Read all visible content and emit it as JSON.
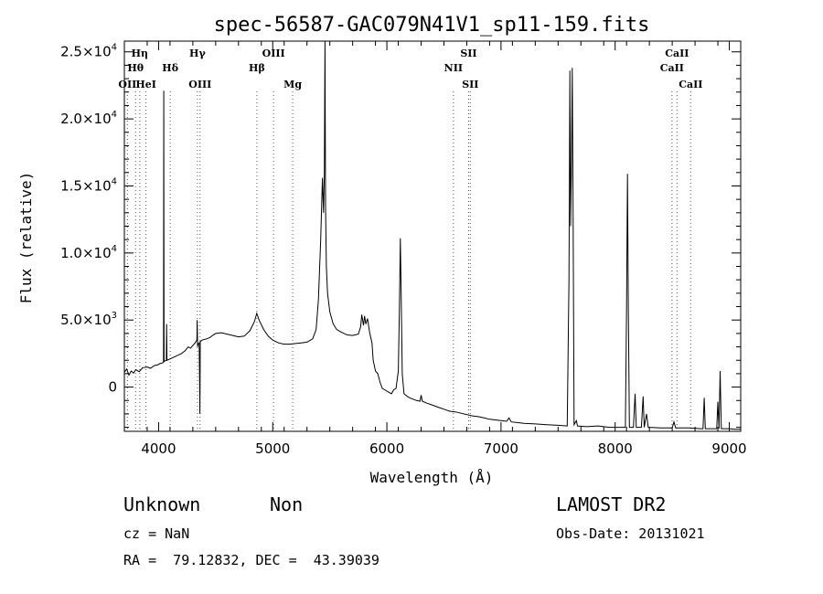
{
  "chart_data": {
    "type": "line",
    "title": "spec-56587-GAC079N41V1_sp11-159.fits",
    "xlabel": "Wavelength (Å)",
    "ylabel": "Flux (relative)",
    "xlim": [
      3700,
      9100
    ],
    "ylim": [
      -3300,
      25800
    ],
    "xticks": [
      4000,
      5000,
      6000,
      7000,
      8000,
      9000
    ],
    "xtick_labels": [
      "4000",
      "5000",
      "6000",
      "7000",
      "8000",
      "9000"
    ],
    "yticks": [
      {
        "value": 0,
        "mant": "0",
        "exp": ""
      },
      {
        "value": 5000,
        "mant": "5.0×10",
        "exp": "3"
      },
      {
        "value": 10000,
        "mant": "1.0×10",
        "exp": "4"
      },
      {
        "value": 15000,
        "mant": "1.5×10",
        "exp": "4"
      },
      {
        "value": 20000,
        "mant": "2.0×10",
        "exp": "4"
      },
      {
        "value": 25000,
        "mant": "2.5×10",
        "exp": "4"
      }
    ],
    "line_markers": [
      {
        "label": "OII",
        "wave": 3727,
        "row": 3
      },
      {
        "label": "Hη",
        "wave": 3835,
        "row": 1
      },
      {
        "label": "Hθ",
        "wave": 3798,
        "row": 2
      },
      {
        "label": "HeI",
        "wave": 3889,
        "row": 3
      },
      {
        "label": "Hδ",
        "wave": 4102,
        "row": 2
      },
      {
        "label": "Hγ",
        "wave": 4340,
        "row": 1
      },
      {
        "label": "OIII",
        "wave": 4363,
        "row": 3
      },
      {
        "label": "Hβ",
        "wave": 4861,
        "row": 2
      },
      {
        "label": "OIII",
        "wave": 5007,
        "row": 1
      },
      {
        "label": "Mg",
        "wave": 5175,
        "row": 3
      },
      {
        "label": "NII",
        "wave": 6583,
        "row": 2
      },
      {
        "label": "SII",
        "wave": 6716,
        "row": 1
      },
      {
        "label": "SII",
        "wave": 6731,
        "row": 3
      },
      {
        "label": "CaII",
        "wave": 8498,
        "row": 2
      },
      {
        "label": "CaII",
        "wave": 8542,
        "row": 1
      },
      {
        "label": "CaII",
        "wave": 8662,
        "row": 3
      }
    ],
    "series": [
      {
        "points": [
          [
            3700,
            1100
          ],
          [
            3720,
            1350
          ],
          [
            3740,
            900
          ],
          [
            3760,
            1200
          ],
          [
            3780,
            1050
          ],
          [
            3800,
            1300
          ],
          [
            3830,
            1150
          ],
          [
            3860,
            1450
          ],
          [
            3900,
            1500
          ],
          [
            3930,
            1400
          ],
          [
            3960,
            1600
          ],
          [
            3990,
            1650
          ],
          [
            4010,
            1750
          ],
          [
            4035,
            1800
          ],
          [
            4043,
            1900
          ],
          [
            4045,
            22100
          ],
          [
            4048,
            1900
          ],
          [
            4055,
            1950
          ],
          [
            4068,
            2000
          ],
          [
            4070,
            4700
          ],
          [
            4073,
            2000
          ],
          [
            4100,
            2100
          ],
          [
            4150,
            2300
          ],
          [
            4200,
            2500
          ],
          [
            4230,
            2700
          ],
          [
            4260,
            3000
          ],
          [
            4280,
            2900
          ],
          [
            4300,
            3100
          ],
          [
            4320,
            3300
          ],
          [
            4335,
            3500
          ],
          [
            4338,
            5000
          ],
          [
            4342,
            3000
          ],
          [
            4345,
            3200
          ],
          [
            4355,
            3300
          ],
          [
            4359,
            300
          ],
          [
            4362,
            -2000
          ],
          [
            4365,
            3400
          ],
          [
            4380,
            3500
          ],
          [
            4420,
            3600
          ],
          [
            4450,
            3700
          ],
          [
            4480,
            3900
          ],
          [
            4500,
            4000
          ],
          [
            4550,
            4050
          ],
          [
            4600,
            3950
          ],
          [
            4650,
            3850
          ],
          [
            4700,
            3750
          ],
          [
            4750,
            3800
          ],
          [
            4800,
            4200
          ],
          [
            4840,
            4900
          ],
          [
            4860,
            5500
          ],
          [
            4880,
            5000
          ],
          [
            4920,
            4300
          ],
          [
            4960,
            3800
          ],
          [
            5000,
            3500
          ],
          [
            5050,
            3300
          ],
          [
            5100,
            3200
          ],
          [
            5150,
            3200
          ],
          [
            5200,
            3250
          ],
          [
            5250,
            3300
          ],
          [
            5300,
            3350
          ],
          [
            5350,
            3600
          ],
          [
            5380,
            4300
          ],
          [
            5400,
            6500
          ],
          [
            5420,
            11000
          ],
          [
            5435,
            15600
          ],
          [
            5445,
            13000
          ],
          [
            5452,
            16000
          ],
          [
            5458,
            25800
          ],
          [
            5463,
            13500
          ],
          [
            5470,
            9000
          ],
          [
            5480,
            7000
          ],
          [
            5500,
            5600
          ],
          [
            5530,
            4700
          ],
          [
            5560,
            4300
          ],
          [
            5600,
            4100
          ],
          [
            5650,
            3900
          ],
          [
            5700,
            3850
          ],
          [
            5750,
            3950
          ],
          [
            5770,
            4500
          ],
          [
            5780,
            5400
          ],
          [
            5795,
            4600
          ],
          [
            5805,
            5300
          ],
          [
            5815,
            4700
          ],
          [
            5830,
            5100
          ],
          [
            5850,
            4000
          ],
          [
            5870,
            3300
          ],
          [
            5880,
            2000
          ],
          [
            5900,
            1200
          ],
          [
            5920,
            1000
          ],
          [
            5940,
            350
          ],
          [
            5960,
            -100
          ],
          [
            5980,
            -200
          ],
          [
            6000,
            -300
          ],
          [
            6020,
            -400
          ],
          [
            6040,
            -500
          ],
          [
            6060,
            -200
          ],
          [
            6080,
            -100
          ],
          [
            6100,
            1200
          ],
          [
            6110,
            6000
          ],
          [
            6118,
            11100
          ],
          [
            6125,
            7000
          ],
          [
            6135,
            1000
          ],
          [
            6150,
            -500
          ],
          [
            6180,
            -700
          ],
          [
            6200,
            -800
          ],
          [
            6230,
            -900
          ],
          [
            6260,
            -1000
          ],
          [
            6290,
            -1050
          ],
          [
            6300,
            -600
          ],
          [
            6310,
            -1050
          ],
          [
            6350,
            -1200
          ],
          [
            6400,
            -1350
          ],
          [
            6450,
            -1500
          ],
          [
            6500,
            -1650
          ],
          [
            6550,
            -1800
          ],
          [
            6600,
            -1850
          ],
          [
            6650,
            -1950
          ],
          [
            6700,
            -2050
          ],
          [
            6750,
            -2150
          ],
          [
            6800,
            -2200
          ],
          [
            6850,
            -2300
          ],
          [
            6900,
            -2400
          ],
          [
            6950,
            -2450
          ],
          [
            7000,
            -2500
          ],
          [
            7050,
            -2550
          ],
          [
            7070,
            -2300
          ],
          [
            7090,
            -2600
          ],
          [
            7150,
            -2650
          ],
          [
            7200,
            -2700
          ],
          [
            7300,
            -2750
          ],
          [
            7400,
            -2800
          ],
          [
            7500,
            -2850
          ],
          [
            7580,
            -2900
          ],
          [
            7595,
            8000
          ],
          [
            7603,
            23600
          ],
          [
            7610,
            12000
          ],
          [
            7618,
            17000
          ],
          [
            7624,
            23800
          ],
          [
            7632,
            12000
          ],
          [
            7640,
            -2800
          ],
          [
            7660,
            -2500
          ],
          [
            7670,
            -2900
          ],
          [
            7750,
            -2950
          ],
          [
            7850,
            -2900
          ],
          [
            7950,
            -3000
          ],
          [
            8050,
            -3000
          ],
          [
            8090,
            -3000
          ],
          [
            8100,
            6000
          ],
          [
            8108,
            15900
          ],
          [
            8115,
            6000
          ],
          [
            8125,
            -3000
          ],
          [
            8160,
            -3000
          ],
          [
            8175,
            -500
          ],
          [
            8185,
            -3000
          ],
          [
            8230,
            -3000
          ],
          [
            8245,
            -700
          ],
          [
            8255,
            -3000
          ],
          [
            8275,
            -2000
          ],
          [
            8290,
            -3000
          ],
          [
            8400,
            -3050
          ],
          [
            8500,
            -3050
          ],
          [
            8515,
            -2600
          ],
          [
            8530,
            -3050
          ],
          [
            8650,
            -3050
          ],
          [
            8750,
            -3100
          ],
          [
            8770,
            -3100
          ],
          [
            8780,
            -800
          ],
          [
            8790,
            -3100
          ],
          [
            8880,
            -3100
          ],
          [
            8890,
            -3100
          ],
          [
            8900,
            -1100
          ],
          [
            8910,
            -3100
          ],
          [
            8920,
            1200
          ],
          [
            8930,
            -3100
          ],
          [
            9000,
            -3100
          ],
          [
            9050,
            -3150
          ],
          [
            9100,
            -3150
          ]
        ]
      }
    ]
  },
  "footer": {
    "left_line1_a": "Unknown",
    "left_line1_b": "Non",
    "cz": "cz = NaN",
    "radec": "RA =  79.12832, DEC =  43.39039",
    "survey": "LAMOST DR2",
    "obs_date": "Obs-Date: 20131021"
  }
}
